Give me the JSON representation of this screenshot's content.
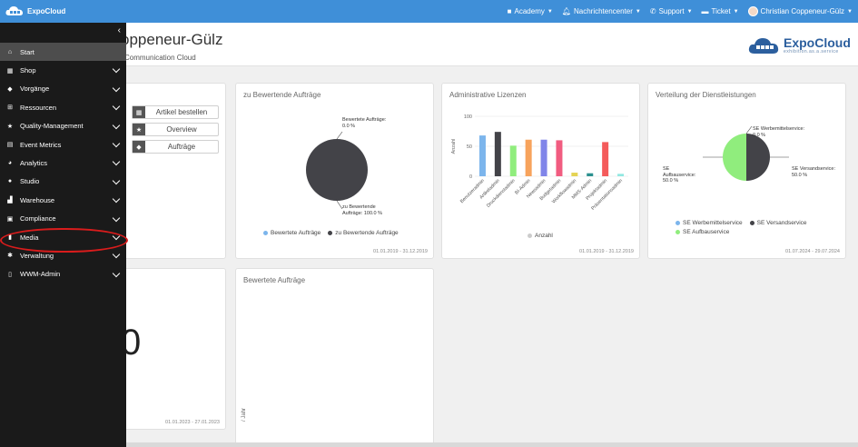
{
  "brand": {
    "name": "ExpoCloud"
  },
  "topnav": [
    {
      "label": "Academy",
      "icon": "video-camera-icon"
    },
    {
      "label": "Nachrichtencenter",
      "icon": "bell-icon"
    },
    {
      "label": "Support",
      "icon": "phone-icon"
    },
    {
      "label": "Ticket",
      "icon": "ticket-icon"
    },
    {
      "label": "Christian Coppeneur-Gülz",
      "icon": "avatar"
    }
  ],
  "page": {
    "title": "oppeneur-Gülz",
    "subtitle": "Communication Cloud",
    "logo_name": "ExpoCloud",
    "logo_sub": "exhibition.as.a.service"
  },
  "sidebar": {
    "items": [
      {
        "label": "Start",
        "icon": "home-icon",
        "active": true
      },
      {
        "label": "Shop",
        "icon": "cart-icon"
      },
      {
        "label": "Vorgänge",
        "icon": "tag-icon"
      },
      {
        "label": "Ressourcen",
        "icon": "sitemap-icon"
      },
      {
        "label": "Quality-Management",
        "icon": "star-icon"
      },
      {
        "label": "Event Metrics",
        "icon": "calendar-icon"
      },
      {
        "label": "Analytics",
        "icon": "pie-chart-icon"
      },
      {
        "label": "Studio",
        "icon": "palette-icon"
      },
      {
        "label": "Warehouse",
        "icon": "industry-icon"
      },
      {
        "label": "Compliance",
        "icon": "clipboard-check-icon"
      },
      {
        "label": "Media",
        "icon": "file-icon"
      },
      {
        "label": "Verwaltung",
        "icon": "gear-icon"
      },
      {
        "label": "WWM-Admin",
        "icon": "file-alt-icon"
      }
    ]
  },
  "quick_buttons": [
    {
      "label": "Artikel bestellen",
      "icon": "cart-icon"
    },
    {
      "label": "Overview",
      "icon": "star-icon"
    },
    {
      "label": "Aufträge",
      "icon": "tags-icon"
    }
  ],
  "cards": {
    "auftraege": {
      "title": "zu Bewertende Aufträge",
      "date": "01.01.2019 - 31.12.2019",
      "label_a": "Bewertete Aufträge: 0.0 %",
      "label_b": "zu Bewertende Aufträge: 100.0 %",
      "legend": [
        "Bewertete Aufträge",
        "zu Bewertende Aufträge"
      ]
    },
    "lizenzen": {
      "title": "Administrative Lizenzen",
      "date": "01.01.2019 - 31.12.2019",
      "legend": "Anzahl"
    },
    "dienstleistungen": {
      "title": "Verteilung der Dienstleistungen",
      "date": "01.07.2024 - 29.07.2024",
      "label_a": "SE Werbemittelservice: 0.0 %",
      "label_b": "SE Aufbauservice: 50.0 %",
      "label_c": "SE Versandservice: 50.0 %",
      "legend": [
        "SE Werbemittelservice",
        "SE Versandservice",
        "SE Aufbauservice"
      ]
    },
    "number_card": {
      "value": "0",
      "date": "01.01.2023 - 27.01.2023"
    },
    "bewertete": {
      "title": "Bewertete Aufträge",
      "ylabel": "/ Jahr"
    }
  },
  "chart_data": [
    {
      "type": "pie",
      "title": "zu Bewertende Aufträge",
      "labels": [
        "Bewertete Aufträge",
        "zu Bewertende Aufträge"
      ],
      "values": [
        0.0,
        100.0
      ],
      "colors": [
        "#7cb5ec",
        "#434348"
      ]
    },
    {
      "type": "bar",
      "title": "Administrative Lizenzen",
      "ylabel": "Anzahl",
      "ylim": [
        0,
        100
      ],
      "yticks": [
        0,
        50,
        100
      ],
      "categories": [
        "Benutzeradmin",
        "Artikeladmin",
        "Druckdienstadmin",
        "BI-Admin",
        "Newsadmin",
        "Budgetadmin",
        "Workflowadmin",
        "MMS-Admin",
        "Projektadmin",
        "Präsentationsadmin"
      ],
      "series": [
        {
          "name": "Anzahl",
          "values": [
            68,
            74,
            51,
            61,
            61,
            60,
            6,
            5,
            57,
            4
          ]
        }
      ],
      "colors": [
        "#7cb5ec",
        "#434348",
        "#90ed7d",
        "#f7a35c",
        "#8085e9",
        "#f15c80",
        "#e4d354",
        "#2b908f",
        "#f45b5b",
        "#91e8e1"
      ]
    },
    {
      "type": "pie",
      "title": "Verteilung der Dienstleistungen",
      "labels": [
        "SE Werbemittelservice",
        "SE Versandservice",
        "SE Aufbauservice"
      ],
      "values": [
        0.0,
        50.0,
        50.0
      ],
      "colors": [
        "#7cb5ec",
        "#434348",
        "#90ed7d"
      ]
    }
  ]
}
